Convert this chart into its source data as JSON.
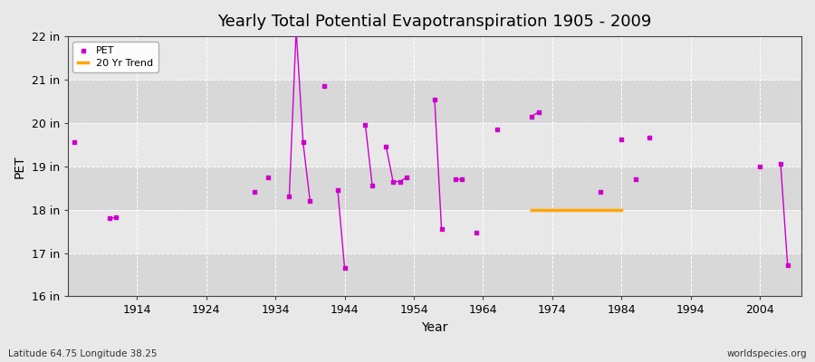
{
  "title": "Yearly Total Potential Evapotranspiration 1905 - 2009",
  "xlabel": "Year",
  "ylabel": "PET",
  "background_color": "#e8e8e8",
  "plot_bg_color": "#ebebeb",
  "title_fontsize": 13,
  "footnote_left": "Latitude 64.75 Longitude 38.25",
  "footnote_right": "worldspecies.org",
  "ylim": [
    16,
    22
  ],
  "ytick_labels": [
    "16 in",
    "17 in",
    "18 in",
    "19 in",
    "20 in",
    "21 in",
    "22 in"
  ],
  "ytick_values": [
    16,
    17,
    18,
    19,
    20,
    21,
    22
  ],
  "xlim": [
    1904,
    2010
  ],
  "xtick_values": [
    1914,
    1924,
    1934,
    1944,
    1954,
    1964,
    1974,
    1984,
    1994,
    2004
  ],
  "pet_color": "#cc00cc",
  "trend_color": "#ffa500",
  "legend_entries": [
    "PET",
    "20 Yr Trend"
  ],
  "pet_data": [
    [
      1905,
      19.55
    ],
    [
      1910,
      17.8
    ],
    [
      1911,
      17.82
    ],
    [
      1931,
      18.4
    ],
    [
      1933,
      18.75
    ],
    [
      1936,
      18.3
    ],
    [
      1937,
      22.15
    ],
    [
      1938,
      19.55
    ],
    [
      1939,
      18.2
    ],
    [
      1941,
      20.85
    ],
    [
      1943,
      18.45
    ],
    [
      1944,
      16.65
    ],
    [
      1947,
      19.95
    ],
    [
      1948,
      18.55
    ],
    [
      1950,
      19.45
    ],
    [
      1951,
      18.65
    ],
    [
      1952,
      18.65
    ],
    [
      1953,
      18.75
    ],
    [
      1957,
      20.55
    ],
    [
      1958,
      17.55
    ],
    [
      1960,
      18.7
    ],
    [
      1961,
      18.7
    ],
    [
      1963,
      17.48
    ],
    [
      1966,
      19.85
    ],
    [
      1971,
      20.15
    ],
    [
      1972,
      20.25
    ],
    [
      1981,
      18.4
    ],
    [
      1984,
      19.62
    ],
    [
      1986,
      18.7
    ],
    [
      1988,
      19.67
    ],
    [
      2004,
      19.0
    ],
    [
      2007,
      19.05
    ],
    [
      2008,
      16.72
    ]
  ],
  "trend_data": [
    [
      1971,
      18.0
    ],
    [
      1984,
      18.0
    ]
  ]
}
